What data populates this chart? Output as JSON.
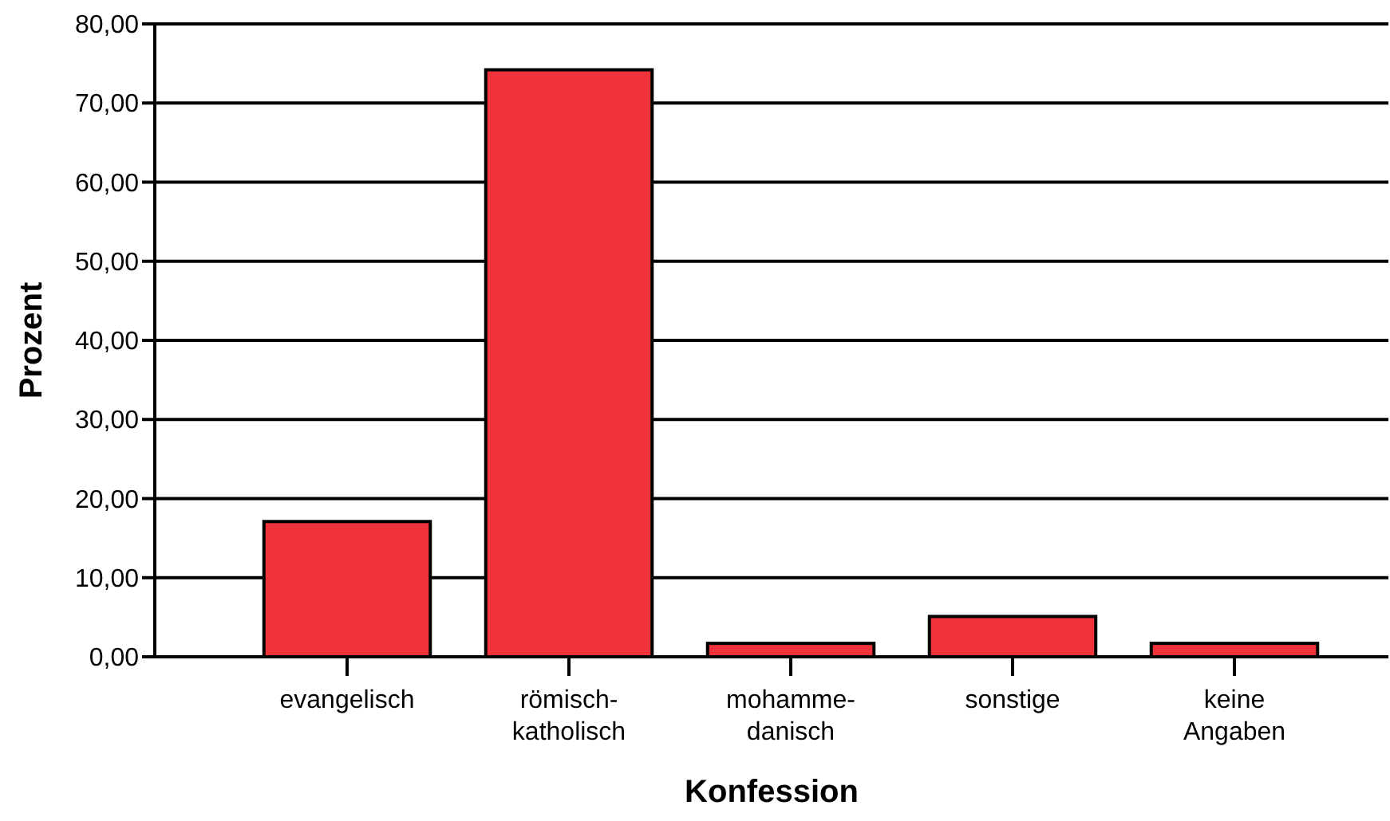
{
  "chart_data": {
    "type": "bar",
    "xlabel": "Konfession",
    "ylabel": "Prozent",
    "categories": [
      "evangelisch",
      "römisch-\nkatholisch",
      "mohamme-\ndanisch",
      "sonstige",
      "keine\nAngaben"
    ],
    "values": [
      17.1,
      74.2,
      1.7,
      5.1,
      1.7
    ],
    "color": "#f0323a",
    "ylim": [
      0,
      80
    ],
    "yticks": [
      {
        "value": 0,
        "label": "0,00"
      },
      {
        "value": 10,
        "label": "10,00"
      },
      {
        "value": 20,
        "label": "20,00"
      },
      {
        "value": 30,
        "label": "30,00"
      },
      {
        "value": 40,
        "label": "40,00"
      },
      {
        "value": 50,
        "label": "50,00"
      },
      {
        "value": 60,
        "label": "60,00"
      },
      {
        "value": 70,
        "label": "70,00"
      },
      {
        "value": 80,
        "label": "80,00"
      }
    ],
    "grid": "y"
  }
}
